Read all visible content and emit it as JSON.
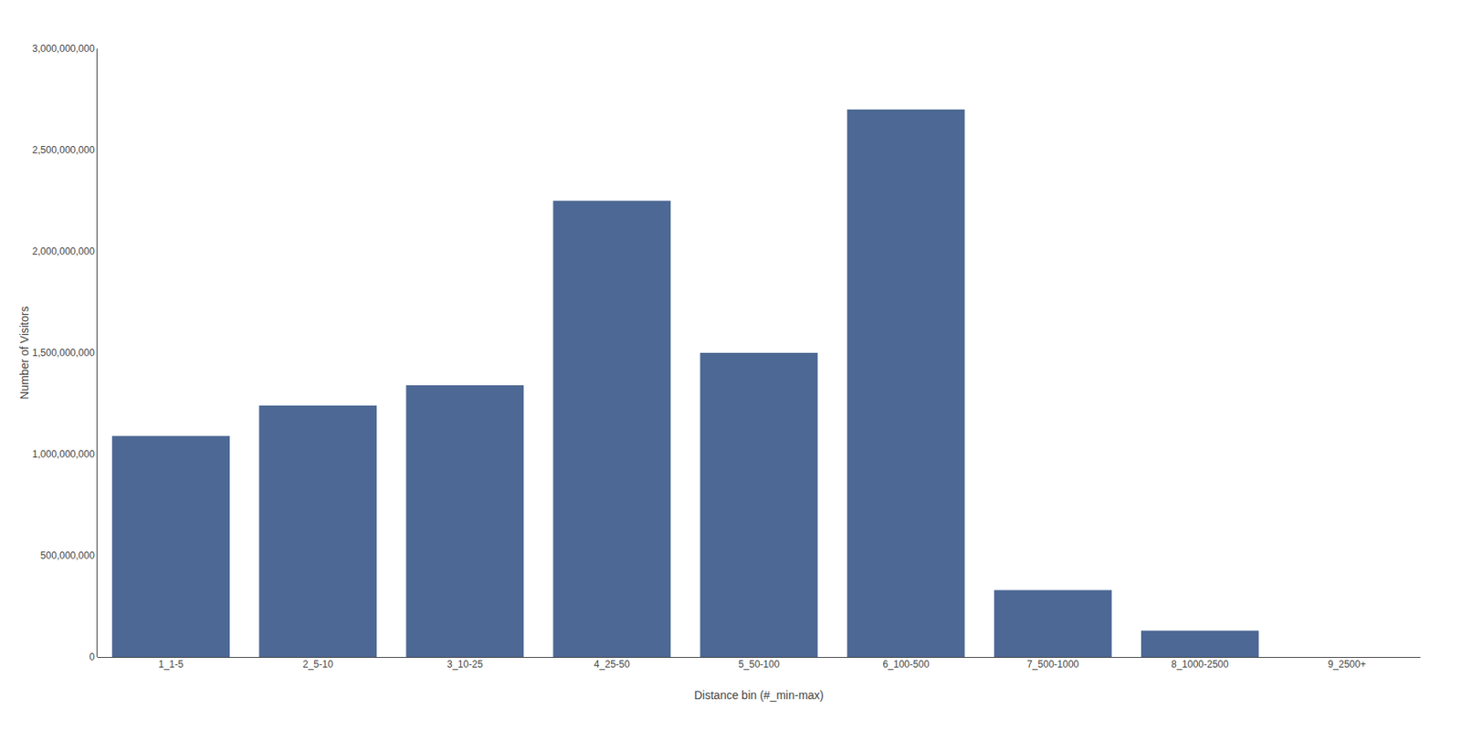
{
  "chart_data": {
    "type": "bar",
    "categories": [
      "1_1-5",
      "2_5-10",
      "3_10-25",
      "4_25-50",
      "5_50-100",
      "6_100-500",
      "7_500-1000",
      "8_1000-2500",
      "9_2500+"
    ],
    "values": [
      1090000000,
      1240000000,
      1340000000,
      2250000000,
      1500000000,
      2700000000,
      330000000,
      130000000,
      0
    ],
    "color": "#4d6894",
    "xlabel": "Distance bin (#_min-max)",
    "ylabel": "Number of Visitors",
    "ylim": [
      0,
      3000000000
    ],
    "yticks": [
      0,
      {
        "value": 500000000,
        "label": "500,000,000"
      },
      {
        "value": 1000000000,
        "label": "1,000,000,000"
      },
      {
        "value": 1500000000,
        "label": "1,500,000,000"
      },
      {
        "value": 2000000000,
        "label": "2,000,000,000"
      },
      {
        "value": 2500000000,
        "label": "2,500,000,000"
      },
      {
        "value": 3000000000,
        "label": "3,000,000,000"
      }
    ],
    "grid": false
  }
}
